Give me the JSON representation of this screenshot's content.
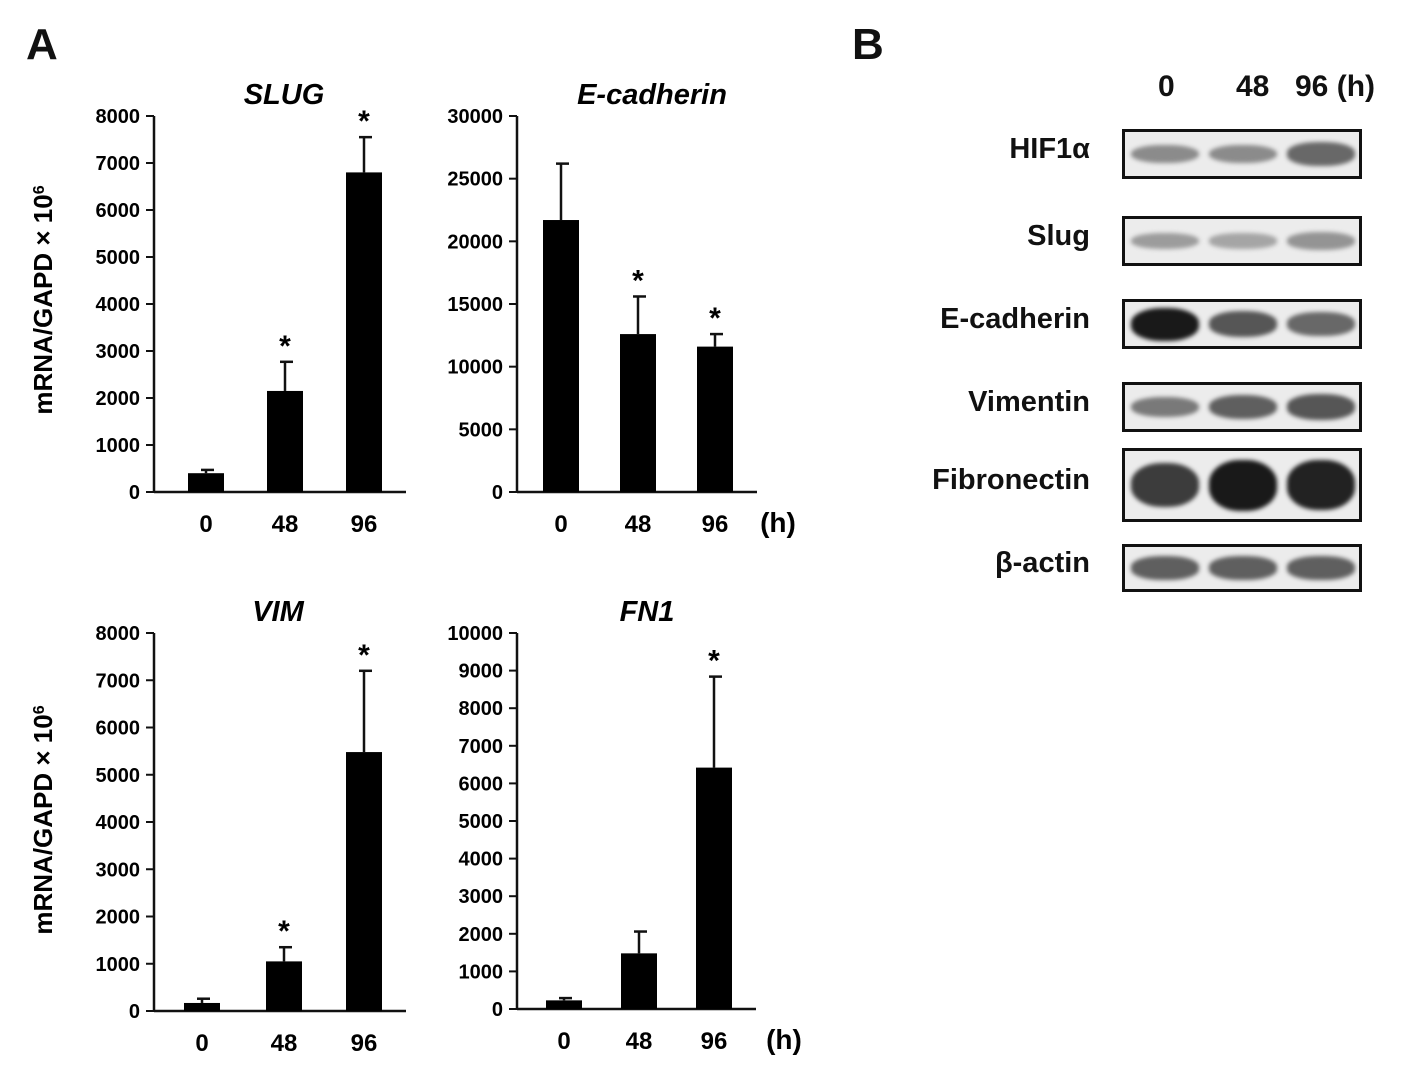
{
  "panels": {
    "a": "A",
    "b": "B"
  },
  "common": {
    "ylabel": "mRNA/GAPD × 10",
    "ylabel_exp": "6",
    "x_unit": "(h)",
    "sig": "*"
  },
  "chart_data": [
    {
      "type": "bar",
      "title": "SLUG",
      "categories": [
        "0",
        "48",
        "96"
      ],
      "values": [
        400,
        2150,
        6800
      ],
      "errors": [
        70,
        620,
        750
      ],
      "significant": [
        false,
        true,
        true
      ],
      "ylim": [
        0,
        8000
      ],
      "yticks": [
        0,
        1000,
        2000,
        3000,
        4000,
        5000,
        6000,
        7000,
        8000
      ],
      "ylabel": "mRNA/GAPD × 10⁶",
      "xlabel": "",
      "color": "#000000"
    },
    {
      "type": "bar",
      "title": "E-cadherin",
      "categories": [
        "0",
        "48",
        "96"
      ],
      "values": [
        21700,
        12600,
        11600
      ],
      "errors": [
        4500,
        3000,
        1000
      ],
      "significant": [
        false,
        true,
        true
      ],
      "ylim": [
        0,
        30000
      ],
      "yticks": [
        0,
        5000,
        10000,
        15000,
        20000,
        25000,
        30000
      ],
      "ylabel": "",
      "xlabel": "(h)",
      "color": "#000000"
    },
    {
      "type": "bar",
      "title": "VIM",
      "categories": [
        "0",
        "48",
        "96"
      ],
      "values": [
        170,
        1050,
        5480
      ],
      "errors": [
        90,
        300,
        1720
      ],
      "significant": [
        false,
        true,
        true
      ],
      "ylim": [
        0,
        8000
      ],
      "yticks": [
        0,
        1000,
        2000,
        3000,
        4000,
        5000,
        6000,
        7000,
        8000
      ],
      "ylabel": "mRNA/GAPD × 10⁶",
      "xlabel": "",
      "color": "#000000"
    },
    {
      "type": "bar",
      "title": "FN1",
      "categories": [
        "0",
        "48",
        "96"
      ],
      "values": [
        230,
        1480,
        6420
      ],
      "errors": [
        60,
        580,
        2420
      ],
      "significant": [
        false,
        false,
        true
      ],
      "ylim": [
        0,
        10000
      ],
      "yticks": [
        0,
        1000,
        2000,
        3000,
        4000,
        5000,
        6000,
        7000,
        8000,
        9000,
        10000
      ],
      "ylabel": "",
      "xlabel": "(h)",
      "color": "#000000"
    }
  ],
  "western_blot": {
    "timepoints": [
      "0",
      "48",
      "96 (h)"
    ],
    "proteins": [
      {
        "name": "HIF1α",
        "intensity": [
          0.35,
          0.35,
          0.55
        ]
      },
      {
        "name": "Slug",
        "intensity": [
          0.25,
          0.2,
          0.3
        ]
      },
      {
        "name": "E-cadherin",
        "intensity": [
          1.0,
          0.65,
          0.55
        ]
      },
      {
        "name": "Vimentin",
        "intensity": [
          0.45,
          0.6,
          0.65
        ]
      },
      {
        "name": "Fibronectin",
        "intensity": [
          0.8,
          1.0,
          0.95
        ]
      },
      {
        "name": "β-actin",
        "intensity": [
          0.6,
          0.6,
          0.6
        ]
      }
    ]
  }
}
